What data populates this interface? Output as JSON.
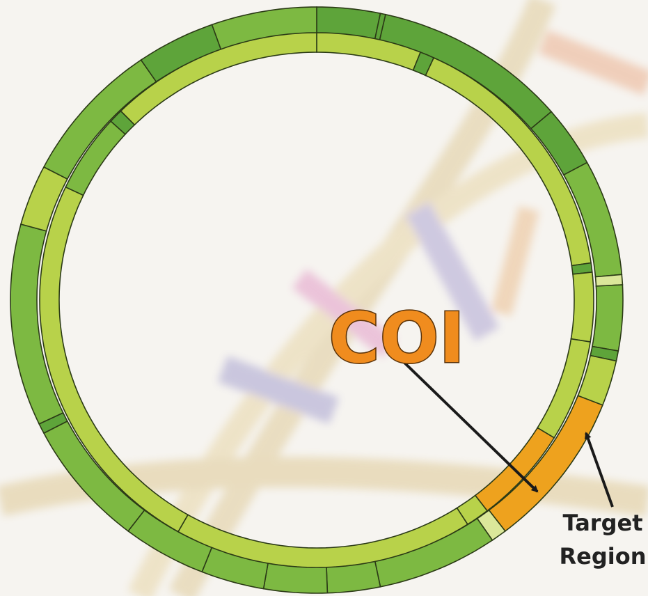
{
  "labels": {
    "gene": "COI",
    "target": [
      "Target",
      "Region"
    ]
  }
}
